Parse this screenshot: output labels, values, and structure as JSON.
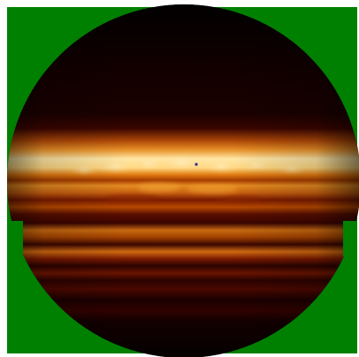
{
  "image": {
    "background_color": "#ffffff",
    "mask_color": "#008000",
    "disk_base_color": "#0f0000",
    "marker_color": "#2a2aa8",
    "palette": [
      "#000000",
      "#3a0200",
      "#7a1a00",
      "#b84a00",
      "#e07a10",
      "#f4b04a",
      "#ffe7a8"
    ]
  }
}
